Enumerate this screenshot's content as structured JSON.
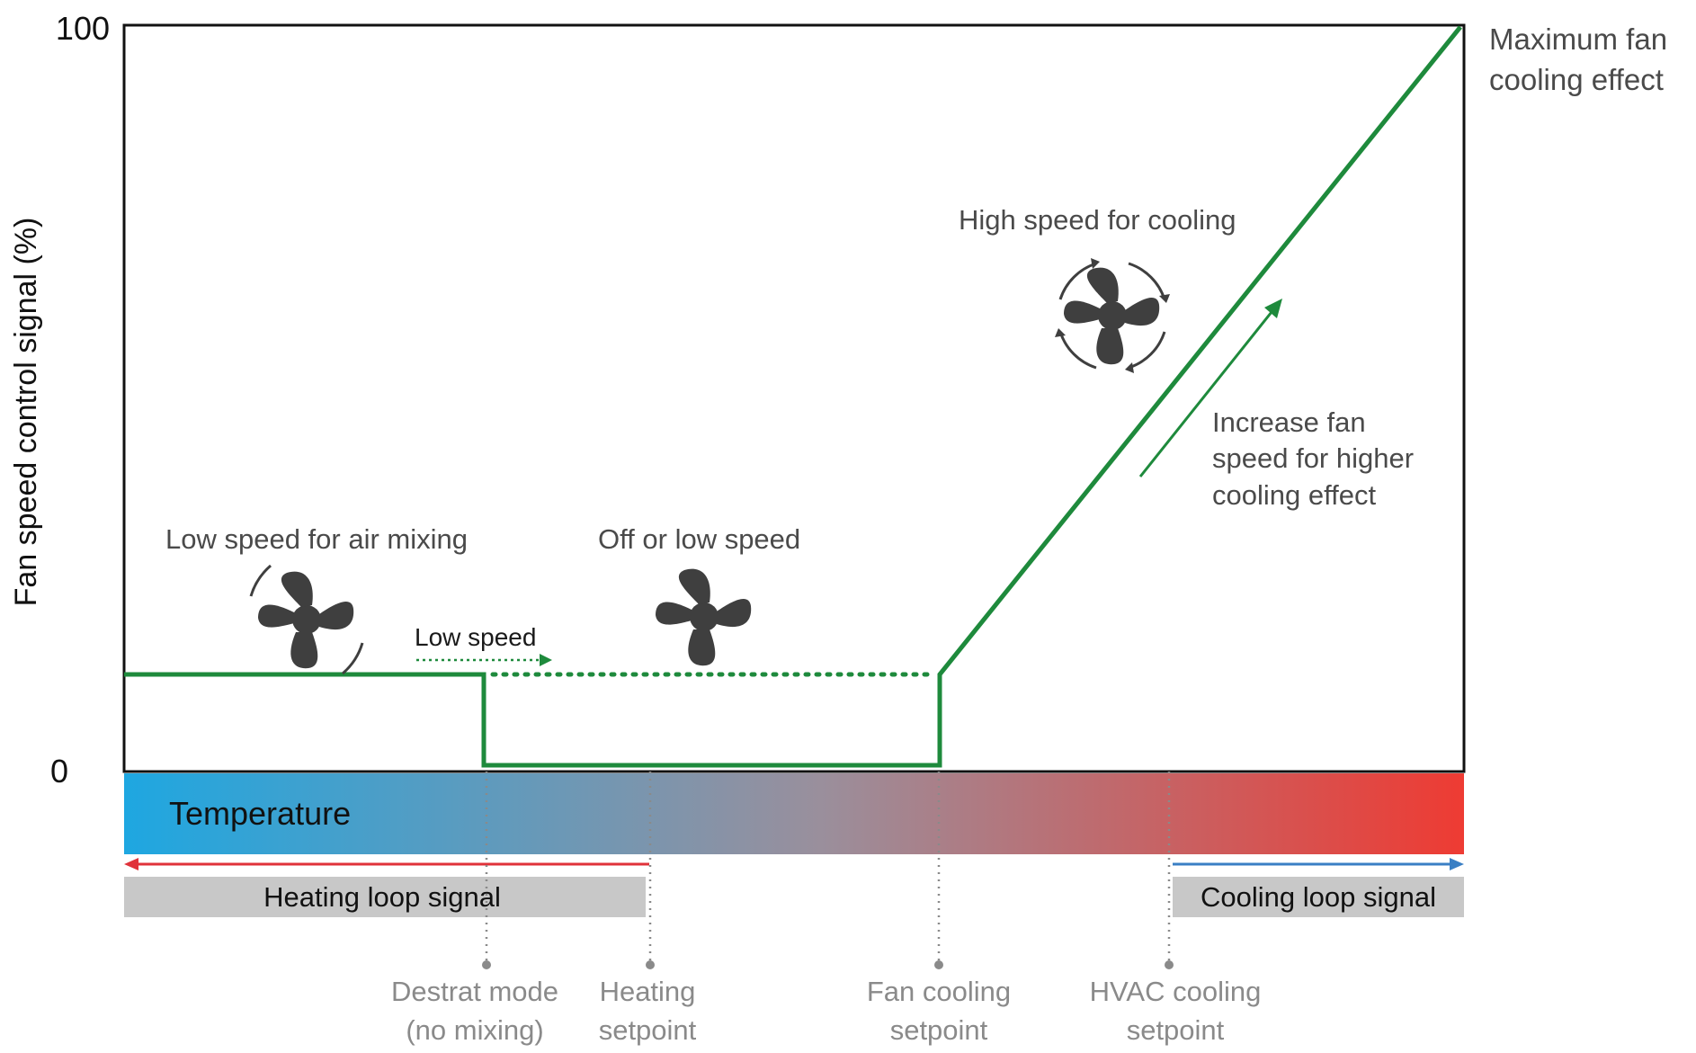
{
  "axes": {
    "y_axis_label": "Fan speed control signal (%)",
    "y_tick_top": "100",
    "y_tick_bottom": "0"
  },
  "annotations": {
    "max_fan_line1": "Maximum fan",
    "max_fan_line2": "cooling effect",
    "high_speed": "High speed for cooling",
    "increase_line1": "Increase fan",
    "increase_line2": "speed for higher",
    "increase_line3": "cooling effect",
    "low_speed_mixing": "Low speed for air mixing",
    "off_or_low": "Off or low speed",
    "low_speed": "Low speed"
  },
  "temperature_bar": {
    "label": "Temperature",
    "color_cold": "#1ea7e1",
    "color_mid": "#9a8f9c",
    "color_hot": "#ee3b33"
  },
  "loop_signals": {
    "heating": "Heating loop signal",
    "cooling": "Cooling loop signal",
    "heating_arrow_color": "#e0323a",
    "cooling_arrow_color": "#3a7fc4"
  },
  "setpoints": {
    "destrat_line1": "Destrat mode",
    "destrat_line2": "(no mixing)",
    "heating_line1": "Heating",
    "heating_line2": "setpoint",
    "fan_cooling_line1": "Fan cooling",
    "fan_cooling_line2": "setpoint",
    "hvac_line1": "HVAC cooling",
    "hvac_line2": "setpoint"
  },
  "icons": {
    "fan_low_mixing": "fan-icon",
    "fan_off_low": "fan-icon",
    "fan_high": "fan-icon"
  },
  "colors": {
    "signal_line": "#1e8a3c",
    "label_text": "#4a4a4a",
    "setpoint_text": "#8a8a8a",
    "loop_box": "#c8c8c8"
  }
}
